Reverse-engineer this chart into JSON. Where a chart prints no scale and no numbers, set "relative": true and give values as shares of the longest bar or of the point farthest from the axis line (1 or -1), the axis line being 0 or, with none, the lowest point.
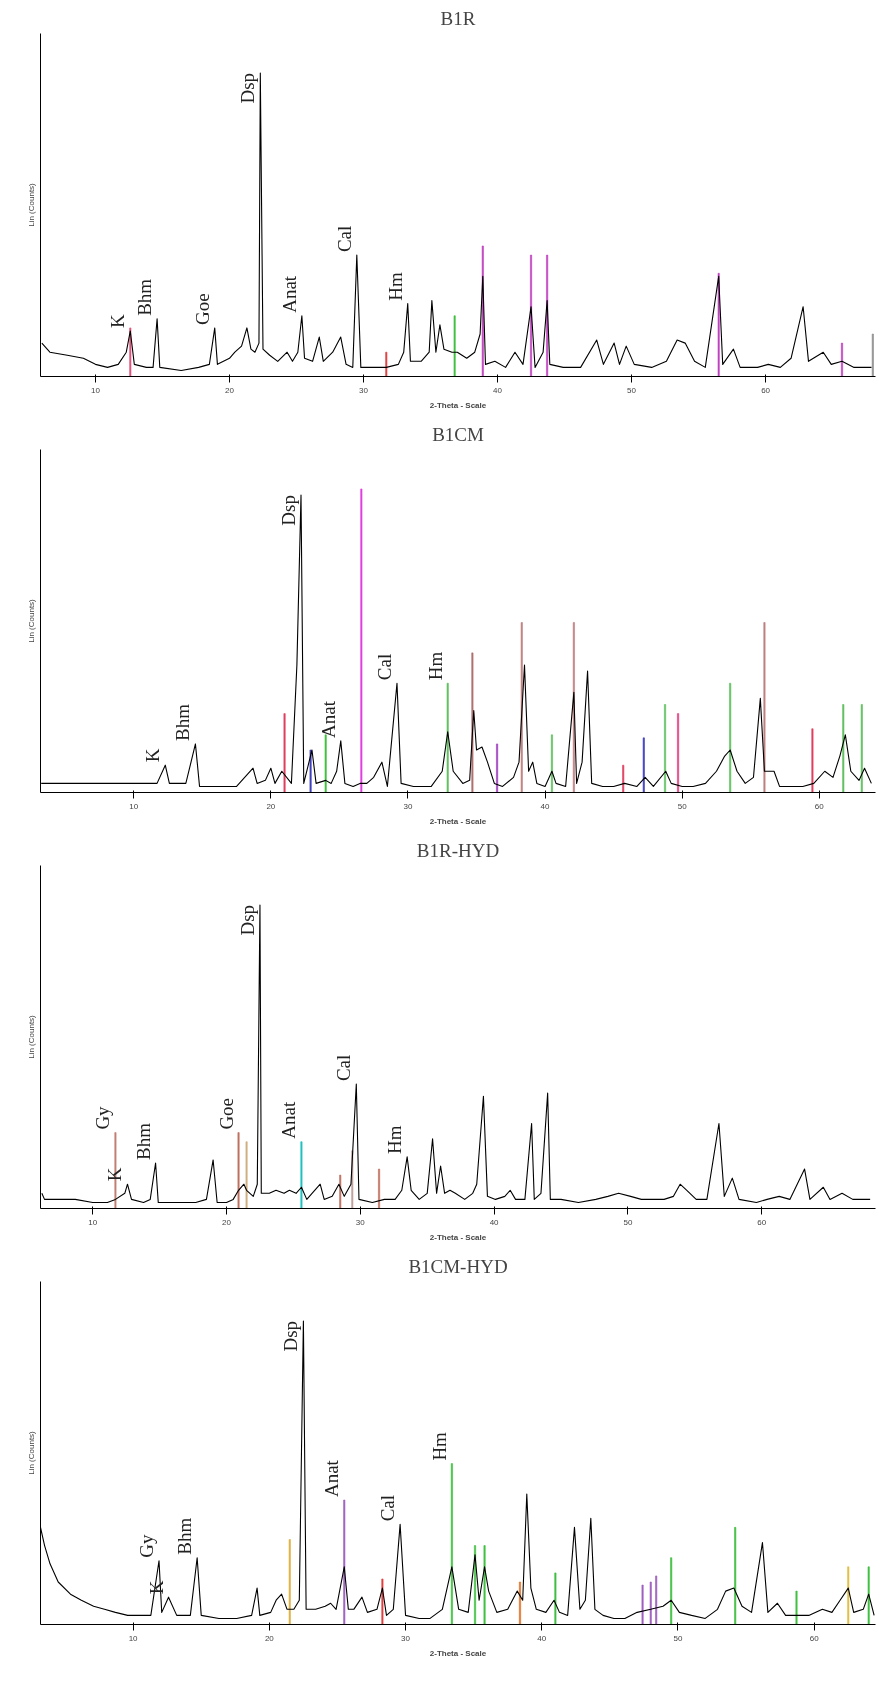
{
  "chart_data": [
    {
      "type": "line",
      "title": "B1R",
      "xlabel": "2-Theta - Scale",
      "ylabel": "Lin (Counts)",
      "relative": true,
      "xlim": [
        5.9,
        68.2
      ],
      "xticks": [
        10,
        20,
        30,
        40,
        50,
        60
      ],
      "series": [
        {
          "color": "#000000",
          "x": [
            6.0,
            6.6,
            7.9,
            9.1,
            10,
            10.9,
            11.7,
            12.3,
            12.6,
            12.9,
            13.8,
            14.3,
            14.6,
            14.8,
            16.4,
            17.7,
            18.5,
            18.9,
            19.1,
            20,
            20.4,
            20.9,
            21.3,
            21.6,
            21.9,
            22.2,
            22.3,
            22.5,
            23.0,
            23.6,
            24.3,
            24.7,
            25.1,
            25.4,
            25.6,
            26.2,
            26.7,
            27.0,
            27.7,
            28.3,
            28.7,
            29.2,
            29.5,
            29.8,
            30.9,
            31.7,
            32.6,
            33.0,
            33.3,
            33.5,
            34.3,
            34.9,
            35.1,
            35.4,
            35.7,
            36.0,
            36.6,
            37.0,
            37.7,
            38.3,
            38.7,
            38.9,
            39.1,
            39.8,
            40.6,
            41.3,
            41.9,
            42.5,
            42.8,
            43.4,
            43.7,
            43.9,
            44.9,
            46.2,
            47.4,
            47.9,
            48.7,
            49.1,
            49.6,
            50.2,
            51.5,
            52.6,
            53.4,
            54.0,
            54.7,
            55.5,
            56.5,
            56.8,
            57.6,
            58.1,
            59.4,
            60.2,
            61.1,
            61.9,
            62.8,
            63.2,
            64.3,
            64.9,
            65.7,
            66.6,
            67.9
          ],
          "values": [
            0.11,
            0.08,
            0.07,
            0.06,
            0.04,
            0.03,
            0.04,
            0.08,
            0.15,
            0.04,
            0.03,
            0.03,
            0.19,
            0.03,
            0.02,
            0.03,
            0.04,
            0.16,
            0.04,
            0.06,
            0.08,
            0.1,
            0.16,
            0.09,
            0.08,
            0.11,
            1.0,
            0.09,
            0.07,
            0.05,
            0.08,
            0.05,
            0.08,
            0.2,
            0.06,
            0.05,
            0.13,
            0.05,
            0.08,
            0.13,
            0.04,
            0.03,
            0.4,
            0.03,
            0.03,
            0.03,
            0.04,
            0.08,
            0.24,
            0.05,
            0.05,
            0.08,
            0.25,
            0.08,
            0.17,
            0.09,
            0.08,
            0.08,
            0.06,
            0.08,
            0.14,
            0.33,
            0.04,
            0.05,
            0.03,
            0.08,
            0.04,
            0.23,
            0.03,
            0.08,
            0.25,
            0.04,
            0.03,
            0.03,
            0.12,
            0.04,
            0.11,
            0.04,
            0.1,
            0.04,
            0.03,
            0.05,
            0.12,
            0.11,
            0.05,
            0.03,
            0.33,
            0.04,
            0.09,
            0.03,
            0.03,
            0.04,
            0.03,
            0.06,
            0.23,
            0.05,
            0.08,
            0.04,
            0.05,
            0.03,
            0.03
          ]
        },
        {
          "type": "bar",
          "x": [
            12.6,
            31.7,
            36.8,
            38.9,
            42.5,
            43.7,
            56.5,
            65.7,
            68.0
          ],
          "values": [
            0.16,
            0.08,
            0.2,
            0.43,
            0.4,
            0.4,
            0.34,
            0.11,
            0.14
          ],
          "colors": [
            "#e0507a",
            "#e04040",
            "#40c040",
            "#c040c0",
            "#c040c0",
            "#c040c0",
            "#c040c0",
            "#c040c0",
            "#909090"
          ]
        }
      ],
      "annotations": [
        {
          "text": "K",
          "x": 12.6,
          "y": 0.15
        },
        {
          "text": "Bhm",
          "x": 14.6,
          "y": 0.19
        },
        {
          "text": "Goe",
          "x": 18.9,
          "y": 0.16
        },
        {
          "text": "Dsp",
          "x": 22.3,
          "y": 1.0
        },
        {
          "text": "Anat",
          "x": 25.4,
          "y": 0.2
        },
        {
          "text": "Cal",
          "x": 29.5,
          "y": 0.4
        },
        {
          "text": "Hm",
          "x": 33.3,
          "y": 0.24
        }
      ]
    },
    {
      "type": "line",
      "title": "B1CM",
      "xlabel": "2-Theta - Scale",
      "ylabel": "Lin (Counts)",
      "relative": true,
      "xlim": [
        3.2,
        64.1
      ],
      "xticks": [
        10,
        20,
        30,
        40,
        50,
        60
      ],
      "series": [
        {
          "color": "#000000",
          "x": [
            3.25,
            4.2,
            5.4,
            6.7,
            7.9,
            9.2,
            10.4,
            11.7,
            12.3,
            12.6,
            13.8,
            14.5,
            14.8,
            16.3,
            17.5,
            18.7,
            19.0,
            19.6,
            20,
            20.3,
            20.8,
            21.5,
            21.9,
            22.2,
            22.4,
            23.0,
            23.3,
            24.0,
            24.4,
            24.8,
            25.1,
            25.4,
            26.0,
            26.5,
            27.0,
            27.5,
            28.1,
            28.5,
            29.2,
            29.5,
            30.4,
            31.7,
            32.5,
            32.9,
            33.3,
            34.0,
            34.5,
            34.8,
            35.0,
            35.4,
            35.8,
            36.3,
            36.9,
            37.7,
            38.1,
            38.5,
            38.8,
            39.1,
            39.4,
            40,
            40.5,
            40.8,
            41.5,
            42.1,
            42.3,
            42.7,
            43.1,
            43.4,
            44.2,
            45,
            45.8,
            46.7,
            47.3,
            47.9,
            48.8,
            49.2,
            50,
            50.8,
            51.7,
            52.5,
            53.1,
            53.5,
            54.0,
            54.6,
            55.2,
            55.7,
            56.0,
            56.7,
            57.1,
            57.9,
            58.8,
            59.6,
            60.4,
            61.0,
            61.5,
            61.9,
            62.3,
            62.9,
            63.3,
            63.8
          ],
          "values": [
            0.03,
            0.03,
            0.03,
            0.03,
            0.03,
            0.03,
            0.03,
            0.03,
            0.09,
            0.03,
            0.03,
            0.16,
            0.02,
            0.02,
            0.02,
            0.08,
            0.03,
            0.04,
            0.08,
            0.03,
            0.07,
            0.03,
            0.42,
            0.98,
            0.03,
            0.14,
            0.03,
            0.04,
            0.03,
            0.07,
            0.17,
            0.03,
            0.02,
            0.03,
            0.03,
            0.05,
            0.1,
            0.02,
            0.36,
            0.03,
            0.02,
            0.02,
            0.07,
            0.2,
            0.07,
            0.03,
            0.04,
            0.27,
            0.14,
            0.15,
            0.1,
            0.03,
            0.02,
            0.05,
            0.1,
            0.42,
            0.07,
            0.1,
            0.03,
            0.02,
            0.07,
            0.03,
            0.02,
            0.33,
            0.03,
            0.1,
            0.4,
            0.03,
            0.02,
            0.02,
            0.03,
            0.02,
            0.05,
            0.02,
            0.07,
            0.03,
            0.02,
            0.02,
            0.03,
            0.07,
            0.12,
            0.14,
            0.07,
            0.03,
            0.05,
            0.31,
            0.07,
            0.07,
            0.02,
            0.02,
            0.02,
            0.03,
            0.07,
            0.05,
            0.12,
            0.19,
            0.07,
            0.04,
            0.08,
            0.03
          ]
        },
        {
          "type": "bar",
          "x": [
            21.0,
            22.9,
            24.0,
            26.6,
            32.9,
            34.7,
            36.5,
            38.3,
            40.5,
            42.1,
            45.7,
            47.2,
            48.75,
            49.7,
            53.5,
            56.0,
            59.5,
            61.75,
            63.1
          ],
          "values": [
            0.26,
            0.14,
            0.19,
            1.0,
            0.36,
            0.46,
            0.16,
            0.56,
            0.19,
            0.56,
            0.09,
            0.18,
            0.29,
            0.26,
            0.36,
            0.56,
            0.21,
            0.29,
            0.29
          ],
          "colors": [
            "#e04060",
            "#4040c0",
            "#40c040",
            "#e040e0",
            "#60c060",
            "#b07070",
            "#a040c0",
            "#c08080",
            "#60c060",
            "#c08080",
            "#e04060",
            "#4040c0",
            "#60c060",
            "#e04080",
            "#60c060",
            "#c08080",
            "#e04060",
            "#60c060",
            "#60c060"
          ]
        }
      ],
      "annotations": [
        {
          "text": "K",
          "x": 12.3,
          "y": 0.09
        },
        {
          "text": "Bhm",
          "x": 14.5,
          "y": 0.16
        },
        {
          "text": "Dsp",
          "x": 22.2,
          "y": 0.98
        },
        {
          "text": "Anat",
          "x": 25.1,
          "y": 0.17
        },
        {
          "text": "Cal",
          "x": 29.2,
          "y": 0.36
        },
        {
          "text": "Hm",
          "x": 32.9,
          "y": 0.36
        }
      ]
    },
    {
      "type": "line",
      "title": "B1R-HYD",
      "xlabel": "2-Theta - Scale",
      "ylabel": "Lin (Counts)",
      "relative": true,
      "xlim": [
        6.1,
        68.5
      ],
      "xticks": [
        10,
        20,
        30,
        40,
        50,
        60
      ],
      "series": [
        {
          "color": "#000000",
          "x": [
            6.2,
            6.4,
            7.4,
            8.7,
            10,
            11.1,
            11.7,
            12.4,
            12.6,
            12.9,
            13.8,
            14.3,
            14.7,
            14.9,
            16.4,
            17.7,
            18.5,
            19.0,
            19.3,
            20,
            20.5,
            20.9,
            21.3,
            21.5,
            22.0,
            22.3,
            22.5,
            22.6,
            23.2,
            23.7,
            24.3,
            24.7,
            25.2,
            25.6,
            26.0,
            27.0,
            27.3,
            27.9,
            28.4,
            28.8,
            29.3,
            29.7,
            29.9,
            30.9,
            31.8,
            32.6,
            33.1,
            33.5,
            33.8,
            34.4,
            35.0,
            35.4,
            35.7,
            36.0,
            36.3,
            36.7,
            37.1,
            37.8,
            38.4,
            38.7,
            39.2,
            39.5,
            40.1,
            40.8,
            41.2,
            41.6,
            42.3,
            42.8,
            43.0,
            43.5,
            44.0,
            44.2,
            45.0,
            46.3,
            47.6,
            48.5,
            49.3,
            50.2,
            51.0,
            51.9,
            52.7,
            53.4,
            53.9,
            54.4,
            55.1,
            55.9,
            56.8,
            57.2,
            57.8,
            58.3,
            59.6,
            60.4,
            61.3,
            62.1,
            63.2,
            63.6,
            64.6,
            65.1,
            66.0,
            66.8,
            68.1
          ],
          "values": [
            0.05,
            0.03,
            0.03,
            0.03,
            0.02,
            0.02,
            0.03,
            0.05,
            0.08,
            0.03,
            0.02,
            0.03,
            0.15,
            0.02,
            0.02,
            0.02,
            0.03,
            0.16,
            0.02,
            0.02,
            0.03,
            0.06,
            0.08,
            0.06,
            0.04,
            0.08,
            1.0,
            0.05,
            0.05,
            0.06,
            0.05,
            0.06,
            0.05,
            0.07,
            0.03,
            0.08,
            0.03,
            0.04,
            0.08,
            0.04,
            0.08,
            0.41,
            0.03,
            0.02,
            0.03,
            0.03,
            0.06,
            0.17,
            0.06,
            0.03,
            0.05,
            0.23,
            0.05,
            0.14,
            0.05,
            0.06,
            0.05,
            0.03,
            0.05,
            0.08,
            0.37,
            0.04,
            0.03,
            0.04,
            0.06,
            0.03,
            0.03,
            0.28,
            0.03,
            0.05,
            0.38,
            0.03,
            0.03,
            0.02,
            0.03,
            0.04,
            0.05,
            0.04,
            0.03,
            0.03,
            0.03,
            0.04,
            0.08,
            0.06,
            0.03,
            0.03,
            0.28,
            0.04,
            0.1,
            0.03,
            0.02,
            0.03,
            0.04,
            0.03,
            0.13,
            0.03,
            0.07,
            0.03,
            0.05,
            0.03,
            0.03
          ]
        },
        {
          "type": "bar",
          "x": [
            11.7,
            20.9,
            21.5,
            25.6,
            28.5,
            29.4,
            31.4
          ],
          "values": [
            0.25,
            0.25,
            0.22,
            0.22,
            0.11,
            0.19,
            0.13
          ],
          "colors": [
            "#c08070",
            "#c07060",
            "#d0b080",
            "#20c0c0",
            "#c07060",
            "#c0a0a0",
            "#c07060"
          ]
        }
      ],
      "annotations": [
        {
          "text": "Gy",
          "x": 11.7,
          "y": 0.25
        },
        {
          "text": "K",
          "x": 12.6,
          "y": 0.08
        },
        {
          "text": "Bhm",
          "x": 14.7,
          "y": 0.15
        },
        {
          "text": "Goe",
          "x": 20.9,
          "y": 0.25
        },
        {
          "text": "Dsp",
          "x": 22.5,
          "y": 1.0
        },
        {
          "text": "Anat",
          "x": 25.6,
          "y": 0.22
        },
        {
          "text": "Cal",
          "x": 29.7,
          "y": 0.41
        },
        {
          "text": "Hm",
          "x": 33.5,
          "y": 0.17
        }
      ]
    },
    {
      "type": "line",
      "title": "B1CM-HYD",
      "xlabel": "2-Theta - Scale",
      "ylabel": "Lin (Counts)",
      "relative": true,
      "xlim": [
        3.2,
        64.5
      ],
      "xticks": [
        10,
        20,
        30,
        40,
        50,
        60
      ],
      "series": [
        {
          "color": "#000000",
          "x": [
            3.2,
            3.5,
            3.9,
            4.5,
            5.4,
            6.2,
            7.1,
            7.9,
            8.7,
            9.6,
            10.4,
            11.3,
            11.9,
            12.1,
            12.6,
            13.2,
            14.2,
            14.7,
            15.0,
            16.3,
            17.6,
            18.7,
            19.1,
            19.3,
            20.1,
            20.5,
            20.9,
            21.3,
            21.8,
            22.2,
            22.5,
            22.7,
            23.4,
            24.1,
            24.5,
            24.9,
            25.5,
            25.8,
            26.2,
            26.8,
            27.2,
            27.9,
            28.3,
            28.6,
            29.1,
            29.6,
            30.0,
            31.0,
            31.8,
            32.7,
            33.4,
            33.9,
            34.6,
            35.1,
            35.4,
            35.8,
            36.1,
            36.7,
            37.5,
            38.2,
            38.6,
            38.9,
            39.2,
            39.6,
            40.3,
            40.9,
            41.3,
            41.9,
            42.4,
            42.8,
            43.2,
            43.6,
            43.9,
            44.5,
            45.3,
            46.1,
            47.0,
            48.0,
            48.9,
            49.5,
            50.1,
            51.0,
            52.0,
            52.9,
            53.5,
            54.1,
            54.7,
            55.4,
            56.2,
            56.6,
            57.3,
            57.9,
            58.7,
            59.6,
            60.6,
            61.3,
            61.9,
            62.5,
            62.9,
            63.6,
            64.0,
            64.4
          ],
          "values": [
            0.32,
            0.26,
            0.2,
            0.14,
            0.1,
            0.08,
            0.06,
            0.05,
            0.04,
            0.03,
            0.03,
            0.03,
            0.21,
            0.04,
            0.09,
            0.03,
            0.03,
            0.22,
            0.03,
            0.02,
            0.02,
            0.03,
            0.12,
            0.03,
            0.04,
            0.08,
            0.1,
            0.05,
            0.05,
            0.08,
            1.0,
            0.05,
            0.05,
            0.06,
            0.07,
            0.05,
            0.19,
            0.05,
            0.05,
            0.09,
            0.04,
            0.05,
            0.12,
            0.03,
            0.05,
            0.33,
            0.03,
            0.02,
            0.02,
            0.05,
            0.19,
            0.05,
            0.04,
            0.23,
            0.08,
            0.19,
            0.11,
            0.04,
            0.05,
            0.11,
            0.08,
            0.43,
            0.12,
            0.05,
            0.04,
            0.08,
            0.04,
            0.03,
            0.32,
            0.05,
            0.08,
            0.35,
            0.05,
            0.03,
            0.02,
            0.02,
            0.04,
            0.05,
            0.06,
            0.08,
            0.04,
            0.03,
            0.02,
            0.05,
            0.11,
            0.12,
            0.06,
            0.04,
            0.27,
            0.04,
            0.07,
            0.03,
            0.03,
            0.03,
            0.05,
            0.04,
            0.08,
            0.12,
            0.04,
            0.05,
            0.1,
            0.03
          ]
        },
        {
          "type": "bar",
          "x": [
            21.5,
            25.5,
            28.3,
            33.4,
            35.1,
            35.8,
            38.4,
            41.0,
            47.4,
            48.0,
            48.4,
            49.5,
            54.2,
            58.7,
            62.5,
            64.0
          ],
          "values": [
            0.28,
            0.41,
            0.15,
            0.53,
            0.26,
            0.26,
            0.14,
            0.17,
            0.13,
            0.14,
            0.16,
            0.22,
            0.32,
            0.11,
            0.19,
            0.19
          ],
          "colors": [
            "#e0b040",
            "#a060c0",
            "#e04040",
            "#40c040",
            "#40c040",
            "#40c040",
            "#e07020",
            "#40c040",
            "#a060c0",
            "#a060c0",
            "#a060c0",
            "#40c040",
            "#40c040",
            "#40c040",
            "#e0c040",
            "#40c040"
          ]
        }
      ],
      "annotations": [
        {
          "text": "Gy",
          "x": 11.9,
          "y": 0.21
        },
        {
          "text": "K",
          "x": 12.6,
          "y": 0.09
        },
        {
          "text": "Bhm",
          "x": 14.7,
          "y": 0.22
        },
        {
          "text": "Dsp",
          "x": 22.5,
          "y": 1.0
        },
        {
          "text": "Anat",
          "x": 25.5,
          "y": 0.41
        },
        {
          "text": "Cal",
          "x": 29.6,
          "y": 0.33
        },
        {
          "text": "Hm",
          "x": 33.4,
          "y": 0.53
        }
      ]
    }
  ]
}
